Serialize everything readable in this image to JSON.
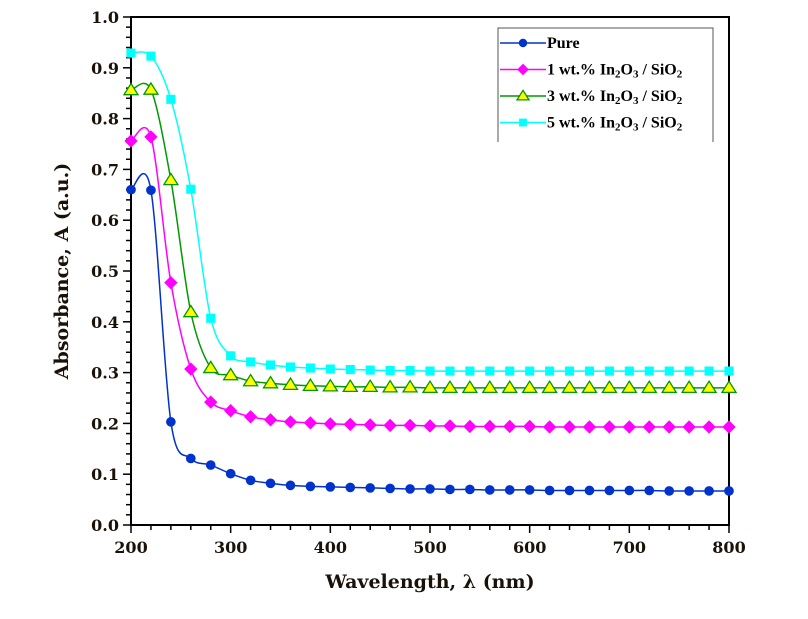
{
  "chart_data": {
    "type": "line",
    "title": "",
    "xlabel": "Wavelength, λ (nm)",
    "ylabel": "Absorbance, A (a.u.)",
    "xlim": [
      200,
      800
    ],
    "ylim": [
      0.0,
      1.0
    ],
    "xticks": [
      200,
      300,
      400,
      500,
      600,
      700,
      800
    ],
    "xtick_labels": [
      "200",
      "300",
      "400",
      "500",
      "600",
      "700",
      "800"
    ],
    "yticks": [
      0.0,
      0.1,
      0.2,
      0.3,
      0.4,
      0.5,
      0.6,
      0.7,
      0.8,
      0.9,
      1.0
    ],
    "ytick_labels": [
      "0.0",
      "0.1",
      "0.2",
      "0.3",
      "0.4",
      "0.5",
      "0.6",
      "0.7",
      "0.8",
      "0.9",
      "1.0"
    ],
    "x_minor_step": 20,
    "y_minor_step": 0.02,
    "grid": false,
    "legend_position": "top-right",
    "x": [
      200,
      220,
      240,
      260,
      280,
      300,
      320,
      340,
      360,
      380,
      400,
      420,
      440,
      460,
      480,
      500,
      520,
      540,
      560,
      580,
      600,
      620,
      640,
      660,
      680,
      700,
      720,
      740,
      760,
      780,
      800
    ],
    "series": [
      {
        "name": "Pure",
        "label_parts": [
          {
            "t": "Pure",
            "sub": false
          }
        ],
        "color": "#0033cc",
        "marker": "circle",
        "marker_fill": "#0033cc",
        "values": [
          0.66,
          0.659,
          0.203,
          0.131,
          0.118,
          0.101,
          0.088,
          0.082,
          0.078,
          0.076,
          0.075,
          0.074,
          0.073,
          0.072,
          0.071,
          0.071,
          0.07,
          0.07,
          0.069,
          0.069,
          0.069,
          0.068,
          0.068,
          0.068,
          0.068,
          0.068,
          0.068,
          0.067,
          0.067,
          0.067,
          0.067
        ]
      },
      {
        "name": "1 wt.% In2O3 / SiO2",
        "label_parts": [
          {
            "t": "1 wt.% In",
            "sub": false
          },
          {
            "t": "2",
            "sub": true
          },
          {
            "t": "O",
            "sub": false
          },
          {
            "t": "3",
            "sub": true
          },
          {
            "t": " / SiO",
            "sub": false
          },
          {
            "t": "2",
            "sub": true
          }
        ],
        "color": "#ff00ff",
        "marker": "diamond",
        "marker_fill": "#ff00ff",
        "values": [
          0.756,
          0.764,
          0.477,
          0.307,
          0.242,
          0.225,
          0.213,
          0.207,
          0.203,
          0.201,
          0.199,
          0.198,
          0.197,
          0.196,
          0.196,
          0.195,
          0.195,
          0.194,
          0.194,
          0.194,
          0.194,
          0.193,
          0.193,
          0.193,
          0.193,
          0.193,
          0.193,
          0.193,
          0.193,
          0.193,
          0.193
        ]
      },
      {
        "name": "3 wt.% In2O3 / SiO2",
        "label_parts": [
          {
            "t": "3 wt.% In",
            "sub": false
          },
          {
            "t": "2",
            "sub": true
          },
          {
            "t": "O",
            "sub": false
          },
          {
            "t": "3",
            "sub": true
          },
          {
            "t": " / SiO",
            "sub": false
          },
          {
            "t": "2",
            "sub": true
          }
        ],
        "color": "#009900",
        "marker": "triangle",
        "marker_fill": "#ffff00",
        "values": [
          0.856,
          0.857,
          0.679,
          0.419,
          0.309,
          0.295,
          0.283,
          0.279,
          0.276,
          0.274,
          0.273,
          0.272,
          0.272,
          0.271,
          0.271,
          0.27,
          0.27,
          0.27,
          0.27,
          0.27,
          0.27,
          0.27,
          0.27,
          0.27,
          0.27,
          0.27,
          0.27,
          0.27,
          0.27,
          0.27,
          0.27
        ]
      },
      {
        "name": "5 wt.% In2O3 / SiO2",
        "label_parts": [
          {
            "t": "5 wt.% In",
            "sub": false
          },
          {
            "t": "2",
            "sub": true
          },
          {
            "t": "O",
            "sub": false
          },
          {
            "t": "3",
            "sub": true
          },
          {
            "t": " / SiO",
            "sub": false
          },
          {
            "t": "2",
            "sub": true
          }
        ],
        "color": "#00ffff",
        "marker": "square",
        "marker_fill": "#00ffff",
        "values": [
          0.929,
          0.923,
          0.838,
          0.661,
          0.407,
          0.333,
          0.321,
          0.315,
          0.311,
          0.309,
          0.307,
          0.306,
          0.305,
          0.304,
          0.304,
          0.303,
          0.303,
          0.303,
          0.303,
          0.303,
          0.303,
          0.303,
          0.303,
          0.303,
          0.303,
          0.303,
          0.303,
          0.303,
          0.303,
          0.303,
          0.303
        ]
      }
    ]
  }
}
